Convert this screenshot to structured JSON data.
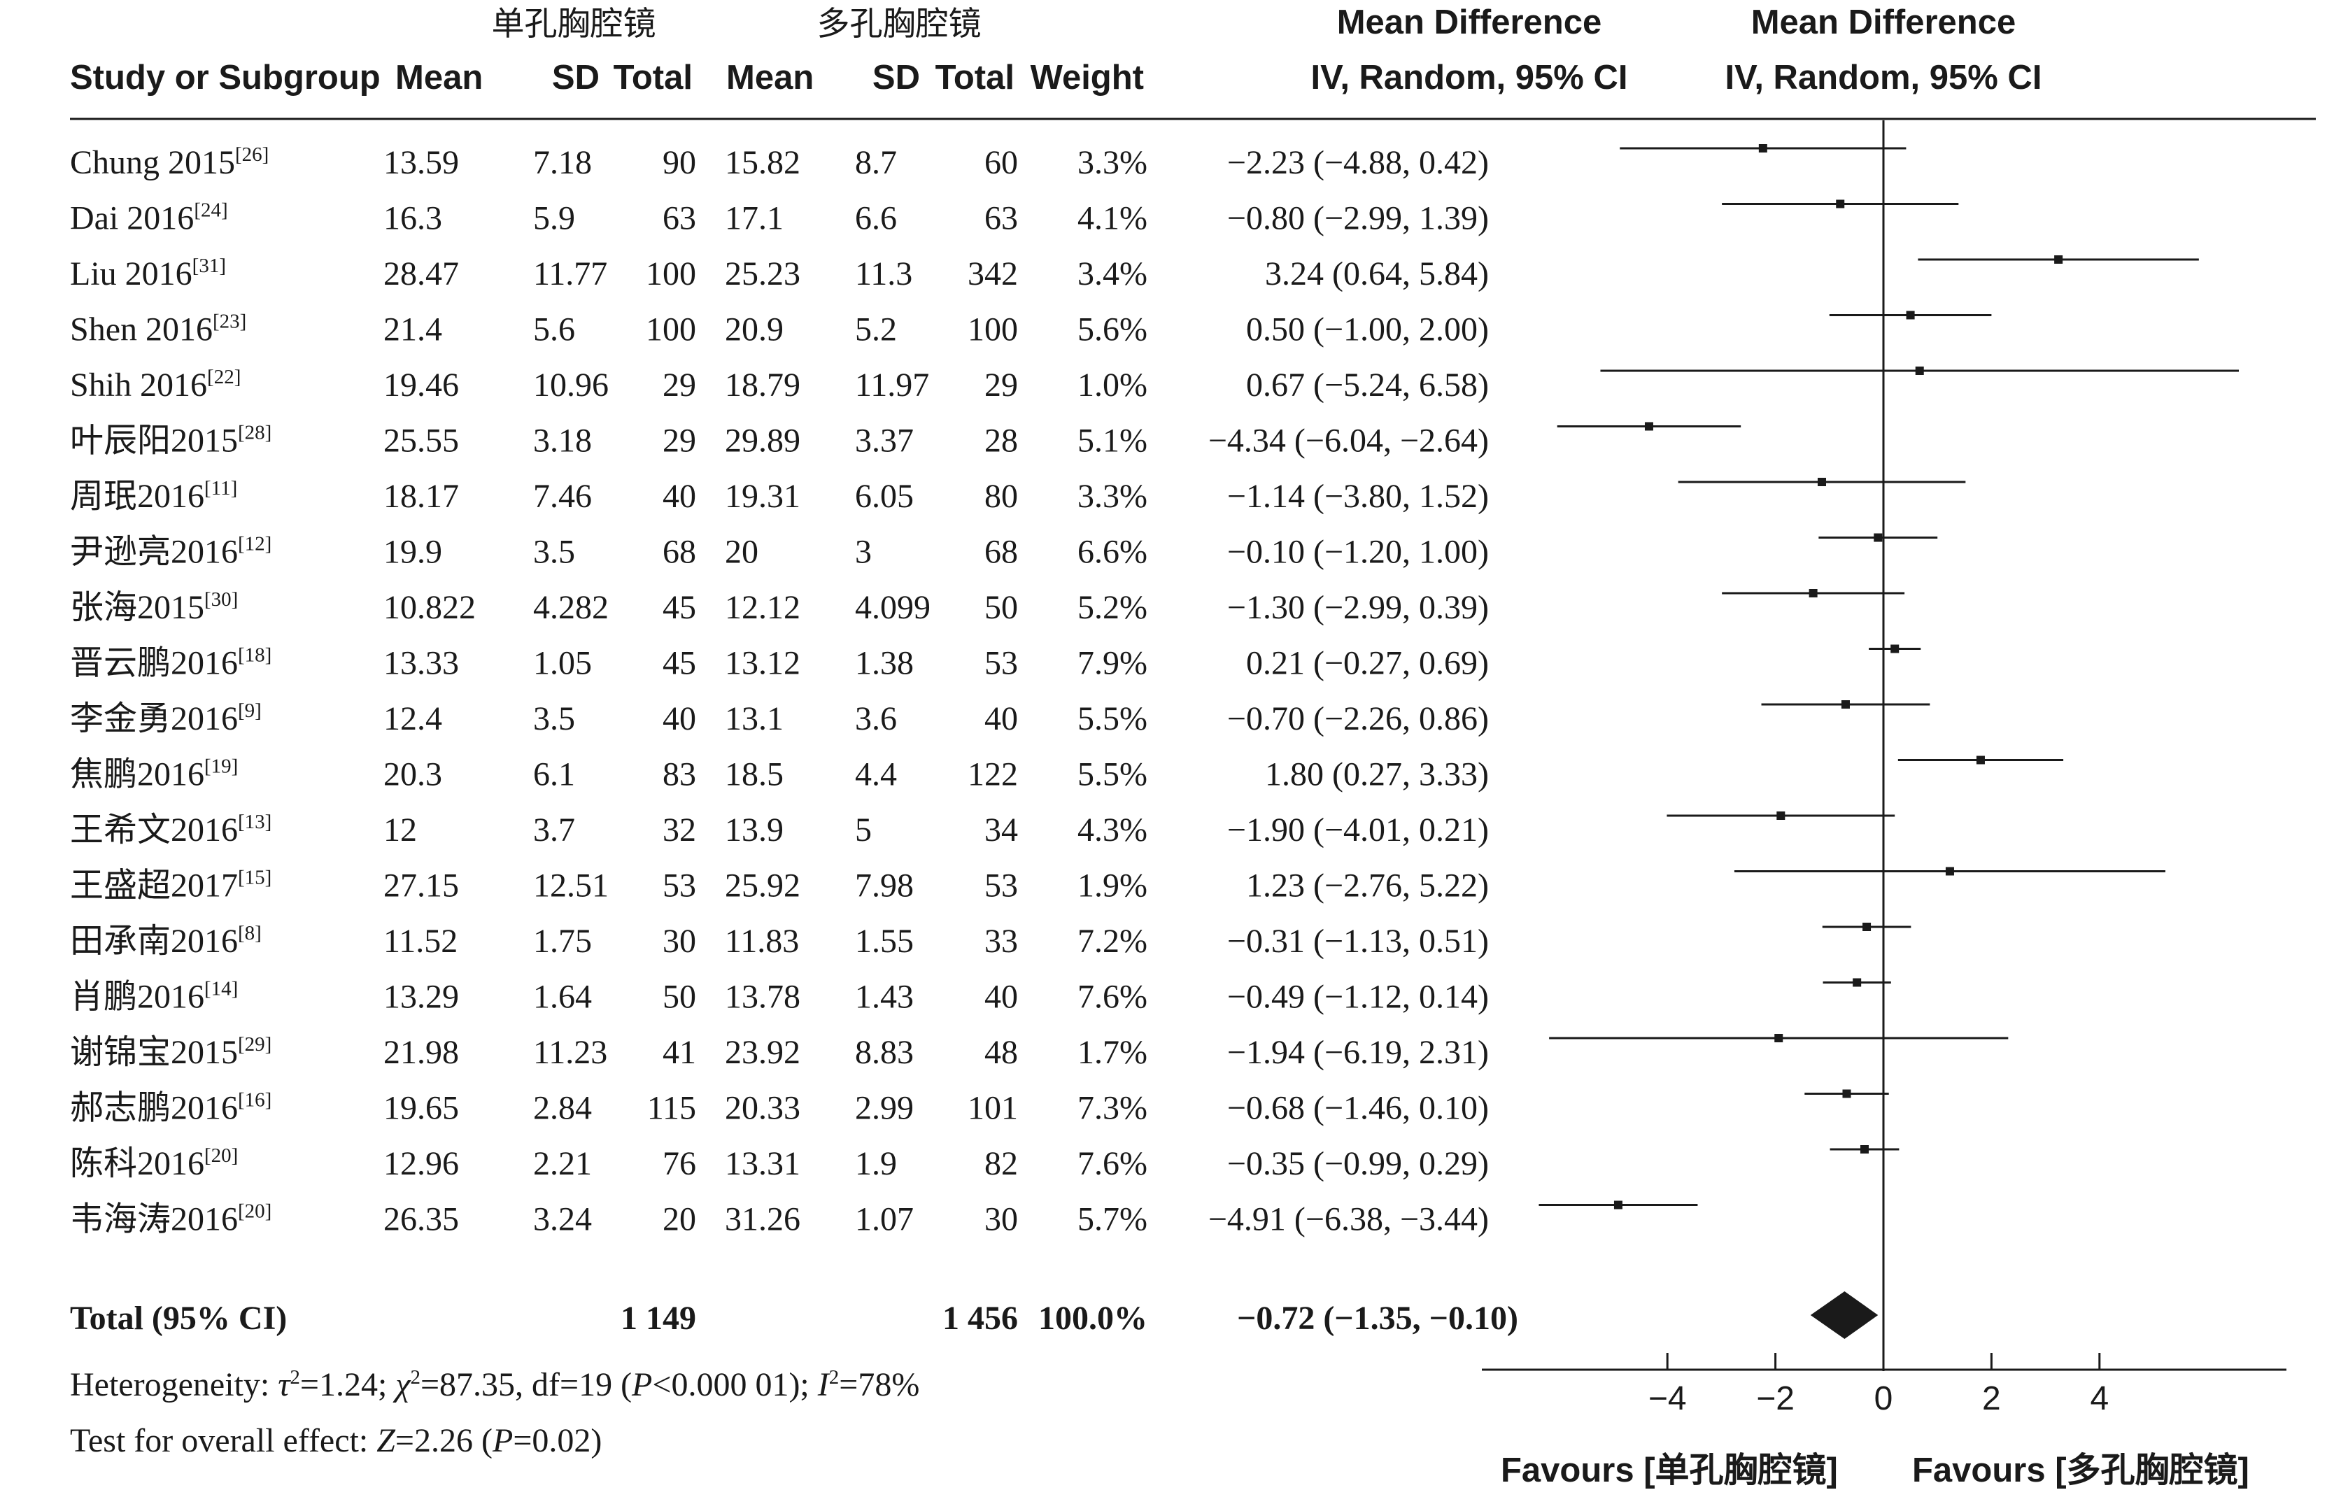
{
  "chart_data": {
    "type": "forest",
    "headers": {
      "group1": "单孔胸腔镜",
      "group2": "多孔胸腔镜",
      "study": "Study or Subgroup",
      "mean": "Mean",
      "sd": "SD",
      "total": "Total",
      "weight": "Weight",
      "md_title": "Mean Difference",
      "md_method": "IV, Random, 95% CI",
      "plot_title": "Mean Difference",
      "plot_method": "IV, Random, 95% CI"
    },
    "studies": [
      {
        "name": "Chung 2015",
        "ref": "[26]",
        "m1": "13.59",
        "sd1": "7.18",
        "n1": "90",
        "m2": "15.82",
        "sd2": "8.7",
        "n2": "60",
        "weight": "3.3%",
        "ci_text": "−2.23 (−4.88, 0.42)",
        "md": -2.23,
        "lo": -4.88,
        "hi": 0.42
      },
      {
        "name": "Dai 2016",
        "ref": "[24]",
        "m1": "16.3",
        "sd1": "5.9",
        "n1": "63",
        "m2": "17.1",
        "sd2": "6.6",
        "n2": "63",
        "weight": "4.1%",
        "ci_text": "−0.80 (−2.99, 1.39)",
        "md": -0.8,
        "lo": -2.99,
        "hi": 1.39
      },
      {
        "name": "Liu 2016",
        "ref": "[31]",
        "m1": "28.47",
        "sd1": "11.77",
        "n1": "100",
        "m2": "25.23",
        "sd2": "11.3",
        "n2": "342",
        "weight": "3.4%",
        "ci_text": "3.24 (0.64, 5.84)",
        "md": 3.24,
        "lo": 0.64,
        "hi": 5.84
      },
      {
        "name": "Shen 2016",
        "ref": "[23]",
        "m1": "21.4",
        "sd1": "5.6",
        "n1": "100",
        "m2": "20.9",
        "sd2": "5.2",
        "n2": "100",
        "weight": "5.6%",
        "ci_text": "0.50 (−1.00, 2.00)",
        "md": 0.5,
        "lo": -1.0,
        "hi": 2.0
      },
      {
        "name": "Shih 2016",
        "ref": "[22]",
        "m1": "19.46",
        "sd1": "10.96",
        "n1": "29",
        "m2": "18.79",
        "sd2": "11.97",
        "n2": "29",
        "weight": "1.0%",
        "ci_text": "0.67 (−5.24, 6.58)",
        "md": 0.67,
        "lo": -5.24,
        "hi": 6.58
      },
      {
        "name": "叶辰阳2015",
        "ref": "[28]",
        "m1": "25.55",
        "sd1": "3.18",
        "n1": "29",
        "m2": "29.89",
        "sd2": "3.37",
        "n2": "28",
        "weight": "5.1%",
        "ci_text": "−4.34 (−6.04, −2.64)",
        "md": -4.34,
        "lo": -6.04,
        "hi": -2.64
      },
      {
        "name": "周珉2016",
        "ref": "[11]",
        "m1": "18.17",
        "sd1": "7.46",
        "n1": "40",
        "m2": "19.31",
        "sd2": "6.05",
        "n2": "80",
        "weight": "3.3%",
        "ci_text": "−1.14 (−3.80, 1.52)",
        "md": -1.14,
        "lo": -3.8,
        "hi": 1.52
      },
      {
        "name": "尹逊亮2016",
        "ref": "[12]",
        "m1": "19.9",
        "sd1": "3.5",
        "n1": "68",
        "m2": "20",
        "sd2": "3",
        "n2": "68",
        "weight": "6.6%",
        "ci_text": "−0.10 (−1.20, 1.00)",
        "md": -0.1,
        "lo": -1.2,
        "hi": 1.0
      },
      {
        "name": "张海2015",
        "ref": "[30]",
        "m1": "10.822",
        "sd1": "4.282",
        "n1": "45",
        "m2": "12.12",
        "sd2": "4.099",
        "n2": "50",
        "weight": "5.2%",
        "ci_text": "−1.30 (−2.99, 0.39)",
        "md": -1.3,
        "lo": -2.99,
        "hi": 0.39
      },
      {
        "name": "晋云鹏2016",
        "ref": "[18]",
        "m1": "13.33",
        "sd1": "1.05",
        "n1": "45",
        "m2": "13.12",
        "sd2": "1.38",
        "n2": "53",
        "weight": "7.9%",
        "ci_text": "0.21 (−0.27, 0.69)",
        "md": 0.21,
        "lo": -0.27,
        "hi": 0.69
      },
      {
        "name": "李金勇2016",
        "ref": "[9]",
        "m1": "12.4",
        "sd1": "3.5",
        "n1": "40",
        "m2": "13.1",
        "sd2": "3.6",
        "n2": "40",
        "weight": "5.5%",
        "ci_text": "−0.70 (−2.26, 0.86)",
        "md": -0.7,
        "lo": -2.26,
        "hi": 0.86
      },
      {
        "name": "焦鹏2016",
        "ref": "[19]",
        "m1": "20.3",
        "sd1": "6.1",
        "n1": "83",
        "m2": "18.5",
        "sd2": "4.4",
        "n2": "122",
        "weight": "5.5%",
        "ci_text": "1.80 (0.27, 3.33)",
        "md": 1.8,
        "lo": 0.27,
        "hi": 3.33
      },
      {
        "name": "王希文2016",
        "ref": "[13]",
        "m1": "12",
        "sd1": "3.7",
        "n1": "32",
        "m2": "13.9",
        "sd2": "5",
        "n2": "34",
        "weight": "4.3%",
        "ci_text": "−1.90 (−4.01, 0.21)",
        "md": -1.9,
        "lo": -4.01,
        "hi": 0.21
      },
      {
        "name": "王盛超2017",
        "ref": "[15]",
        "m1": "27.15",
        "sd1": "12.51",
        "n1": "53",
        "m2": "25.92",
        "sd2": "7.98",
        "n2": "53",
        "weight": "1.9%",
        "ci_text": "1.23 (−2.76, 5.22)",
        "md": 1.23,
        "lo": -2.76,
        "hi": 5.22
      },
      {
        "name": "田承南2016",
        "ref": "[8]",
        "m1": "11.52",
        "sd1": "1.75",
        "n1": "30",
        "m2": "11.83",
        "sd2": "1.55",
        "n2": "33",
        "weight": "7.2%",
        "ci_text": "−0.31 (−1.13, 0.51)",
        "md": -0.31,
        "lo": -1.13,
        "hi": 0.51
      },
      {
        "name": "肖鹏2016",
        "ref": "[14]",
        "m1": "13.29",
        "sd1": "1.64",
        "n1": "50",
        "m2": "13.78",
        "sd2": "1.43",
        "n2": "40",
        "weight": "7.6%",
        "ci_text": "−0.49 (−1.12, 0.14)",
        "md": -0.49,
        "lo": -1.12,
        "hi": 0.14
      },
      {
        "name": "谢锦宝2015",
        "ref": "[29]",
        "m1": "21.98",
        "sd1": "11.23",
        "n1": "41",
        "m2": "23.92",
        "sd2": "8.83",
        "n2": "48",
        "weight": "1.7%",
        "ci_text": "−1.94 (−6.19, 2.31)",
        "md": -1.94,
        "lo": -6.19,
        "hi": 2.31
      },
      {
        "name": "郝志鹏2016",
        "ref": "[16]",
        "m1": "19.65",
        "sd1": "2.84",
        "n1": "115",
        "m2": "20.33",
        "sd2": "2.99",
        "n2": "101",
        "weight": "7.3%",
        "ci_text": "−0.68 (−1.46, 0.10)",
        "md": -0.68,
        "lo": -1.46,
        "hi": 0.1
      },
      {
        "name": "陈科2016",
        "ref": "[20]",
        "m1": "12.96",
        "sd1": "2.21",
        "n1": "76",
        "m2": "13.31",
        "sd2": "1.9",
        "n2": "82",
        "weight": "7.6%",
        "ci_text": "−0.35 (−0.99, 0.29)",
        "md": -0.35,
        "lo": -0.99,
        "hi": 0.29
      },
      {
        "name": "韦海涛2016",
        "ref": "[20]",
        "m1": "26.35",
        "sd1": "3.24",
        "n1": "20",
        "m2": "31.26",
        "sd2": "1.07",
        "n2": "30",
        "weight": "5.7%",
        "ci_text": "−4.91 (−6.38, −3.44)",
        "md": -4.91,
        "lo": -6.38,
        "hi": -3.44
      }
    ],
    "total": {
      "label": "Total (95% CI)",
      "n1": "1 149",
      "n2": "1 456",
      "weight": "100.0%",
      "ci_text": "−0.72 (−1.35, −0.10)",
      "md": -0.72,
      "lo": -1.35,
      "hi": -0.1
    },
    "heterogeneity": {
      "prefix": "Heterogeneity: ",
      "tau": "τ",
      "tau_value": "=1.24; ",
      "chi": "χ",
      "chi_value": "=87.35, df=19 (",
      "p_symbol": "P",
      "p_value": "<0.000 01); ",
      "i_symbol": "I",
      "i_value": "=78%",
      "exponent": "2"
    },
    "overall_effect": {
      "prefix": "Test for overall effect: ",
      "z_symbol": "Z",
      "z_value": "=2.26 (",
      "p_symbol": "P",
      "p_value": "=0.02)"
    },
    "axis": {
      "xmin": -7,
      "xmax": 7.5,
      "ticks": [
        -4,
        -2,
        0,
        2,
        4
      ],
      "tick_labels": [
        "−4",
        "−2",
        "0",
        "2",
        "4"
      ]
    },
    "favours_left": "Favours [单孔胸腔镜]",
    "favours_right": "Favours [多孔胸腔镜]",
    "colors": {
      "ink": "#1a1a1a",
      "background": "#ffffff"
    }
  }
}
